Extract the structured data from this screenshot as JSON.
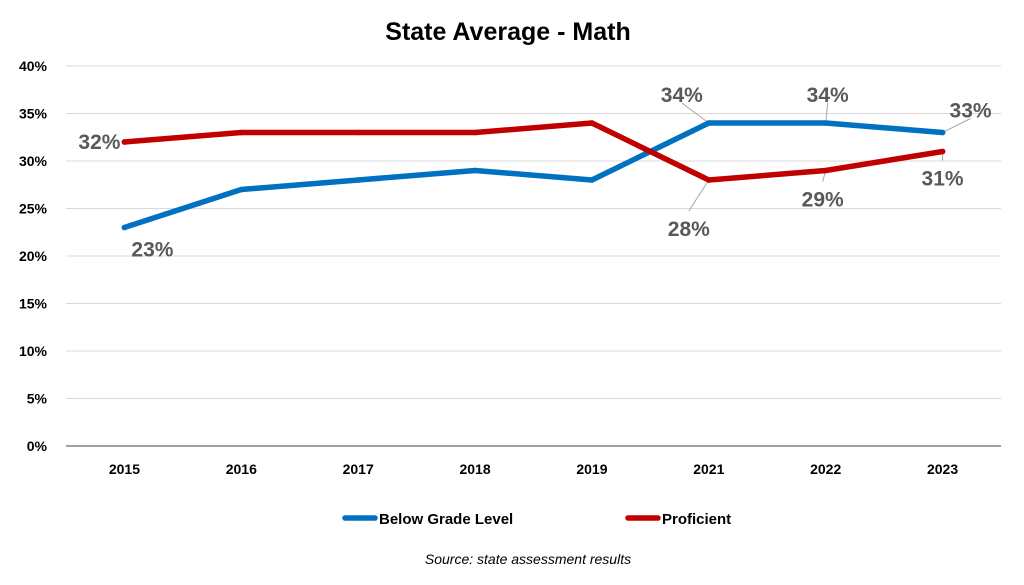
{
  "chart_data": {
    "type": "line",
    "title": "State Average - Math",
    "categories": [
      "2015",
      "2016",
      "2017",
      "2018",
      "2019",
      "2021",
      "2022",
      "2023"
    ],
    "ylim": [
      0,
      40
    ],
    "yticks": [
      "0%",
      "5%",
      "10%",
      "15%",
      "20%",
      "25%",
      "30%",
      "35%",
      "40%"
    ],
    "grid": true,
    "legend_position": "bottom",
    "series": [
      {
        "name": "Below Grade Level",
        "color": "#0070C0",
        "values": [
          23,
          27,
          28,
          29,
          28,
          34,
          34,
          33
        ]
      },
      {
        "name": "Proficient",
        "color": "#C00000",
        "values": [
          32,
          33,
          33,
          33,
          34,
          28,
          29,
          31
        ]
      }
    ],
    "data_labels": [
      {
        "series": 0,
        "index": 0,
        "text": "23%"
      },
      {
        "series": 0,
        "index": 5,
        "text": "34%"
      },
      {
        "series": 0,
        "index": 6,
        "text": "34%"
      },
      {
        "series": 0,
        "index": 7,
        "text": "33%"
      },
      {
        "series": 1,
        "index": 0,
        "text": "32%"
      },
      {
        "series": 1,
        "index": 5,
        "text": "28%"
      },
      {
        "series": 1,
        "index": 6,
        "text": "29%"
      },
      {
        "series": 1,
        "index": 7,
        "text": "31%"
      }
    ]
  },
  "source": "Source: state assessment results"
}
